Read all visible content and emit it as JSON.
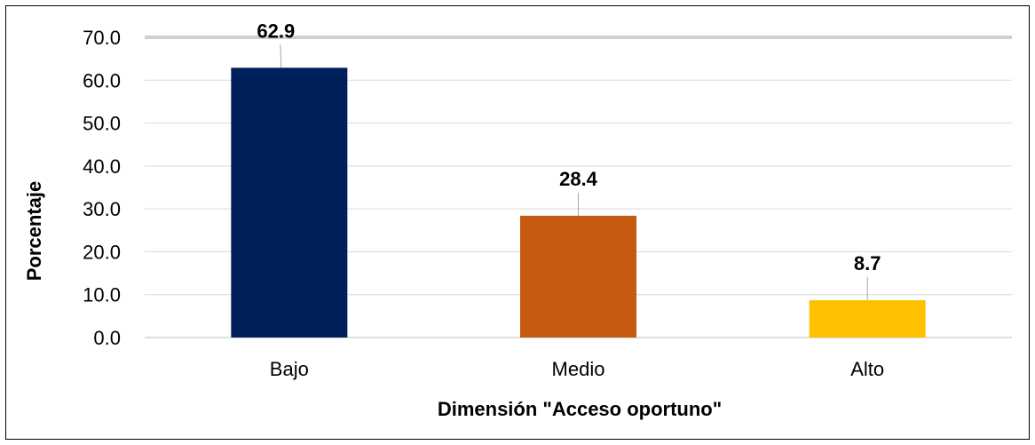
{
  "chart_data": {
    "type": "bar",
    "categories": [
      "Bajo",
      "Medio",
      "Alto"
    ],
    "values": [
      62.9,
      28.4,
      8.7
    ],
    "data_labels": [
      "62.9",
      "28.4",
      "8.7"
    ],
    "bar_colors": [
      "#00205b",
      "#c55a11",
      "#ffc000"
    ],
    "title": "",
    "xlabel": "Dimensión \"Acceso oportuno\"",
    "ylabel": "Porcentaje",
    "ylim": [
      0,
      70
    ],
    "yticks": [
      "0.0",
      "10.0",
      "20.0",
      "30.0",
      "40.0",
      "50.0",
      "60.0",
      "70.0"
    ],
    "grid": true,
    "legend": "none"
  }
}
